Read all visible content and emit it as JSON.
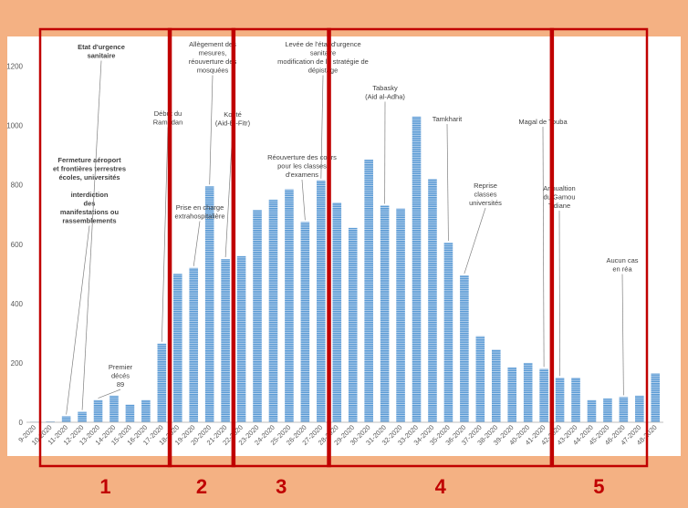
{
  "chart_data": {
    "type": "bar",
    "title": "",
    "xlabel": "",
    "ylabel": "",
    "ylim": [
      0,
      1300
    ],
    "yticks": [
      0,
      200,
      400,
      600,
      800,
      1000,
      1200
    ],
    "grid": false,
    "legend": "none",
    "bar_color": "#5b9bd5",
    "categories": [
      "9-2020",
      "10-2020",
      "11-2020",
      "12-2020",
      "13-2020",
      "14-2020",
      "15-2020",
      "16-2020",
      "17-2020",
      "18-2020",
      "19-2020",
      "20-2020",
      "21-2020",
      "22-2020",
      "23-2020",
      "24-2020",
      "25-2020",
      "26-2020",
      "27-2020",
      "28-2020",
      "29-2020",
      "30-2020",
      "31-2020",
      "32-2020",
      "33-2020",
      "34-2020",
      "35-2020",
      "36-2020",
      "37-2020",
      "38-2020",
      "39-2020",
      "40-2020",
      "41-2020",
      "42-2020",
      "43-2020",
      "44-2020",
      "45-2020",
      "46-2020",
      "47-2020",
      "48-2020"
    ],
    "values": [
      2,
      3,
      20,
      35,
      75,
      90,
      60,
      75,
      265,
      500,
      520,
      795,
      550,
      560,
      715,
      750,
      785,
      675,
      815,
      740,
      655,
      885,
      730,
      720,
      1030,
      820,
      605,
      495,
      290,
      245,
      185,
      200,
      180,
      150,
      150,
      75,
      80,
      85,
      90,
      165
    ],
    "annotations": [
      {
        "index": 2,
        "lines": [
          "Fermeture aéroport",
          "et frontières  terrestres",
          "écoles, universités",
          "",
          "interdiction",
          "des",
          "manifestations ou",
          "rassemblements"
        ],
        "bold": true
      },
      {
        "index": 3,
        "lines": [
          "Etat d'urgence",
          "sanitaire"
        ],
        "bold": true
      },
      {
        "index": 4,
        "lines": [
          "Premier",
          "décés",
          "89"
        ],
        "bold": false
      },
      {
        "index": 8,
        "lines": [
          "Début du",
          "Ramadan"
        ],
        "bold": false
      },
      {
        "index": 10,
        "lines": [
          "Prise en charge",
          "extrahospitalière"
        ],
        "bold": false
      },
      {
        "index": 11,
        "lines": [
          "Allègement  des",
          "mesures,",
          "réouverture des",
          "mosquées"
        ],
        "bold": false
      },
      {
        "index": 12,
        "lines": [
          "Korité",
          "(Aid-El-Fitr)"
        ],
        "bold": false
      },
      {
        "index": 17,
        "lines": [
          "Réouverture des cours",
          "pour les classes",
          "d'examens"
        ],
        "bold": false
      },
      {
        "index": 18,
        "lines": [
          "Levée de l'état d'urgence",
          "sanitaire",
          "modification de la stratégie de",
          "dépistage"
        ],
        "bold": false
      },
      {
        "index": 22,
        "lines": [
          "Tabasky",
          "(Aid al-Adha)"
        ],
        "bold": false
      },
      {
        "index": 26,
        "lines": [
          "Tamkharit"
        ],
        "bold": false
      },
      {
        "index": 27,
        "lines": [
          "Reprise",
          "classes",
          "universités"
        ],
        "bold": false
      },
      {
        "index": 32,
        "lines": [
          "Magal de Touba"
        ],
        "bold": false
      },
      {
        "index": 33,
        "lines": [
          "Annualtion",
          "du Gamou",
          "Tidiane"
        ],
        "bold": false
      },
      {
        "index": 37,
        "lines": [
          "Aucun cas",
          "en réa"
        ],
        "bold": false
      }
    ],
    "periods": [
      {
        "label": "1",
        "from": 0,
        "to": 8
      },
      {
        "label": "2",
        "from": 9,
        "to": 12
      },
      {
        "label": "3",
        "from": 13,
        "to": 18
      },
      {
        "label": "4",
        "from": 19,
        "to": 32
      },
      {
        "label": "5",
        "from": 33,
        "to": 39
      }
    ],
    "period_color": "#c00000"
  }
}
